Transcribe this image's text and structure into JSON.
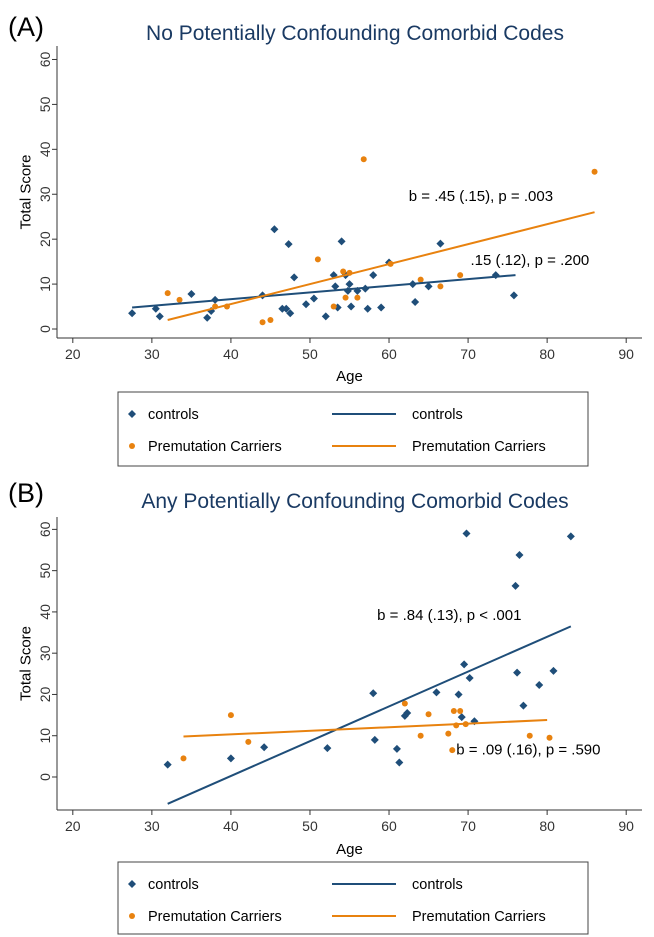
{
  "colors": {
    "controls": "#1f4e79",
    "carriers": "#e8820f",
    "title": "#1a3a63",
    "axis": "#333333"
  },
  "chart_data": [
    {
      "type": "scatter",
      "panel_label": "(A)",
      "title": "No Potentially Confounding Comorbid Codes",
      "xlabel": "Age",
      "ylabel": "Total Score",
      "xlim": [
        18,
        92
      ],
      "ylim": [
        -2,
        63
      ],
      "xticks": [
        20,
        30,
        40,
        50,
        60,
        70,
        80,
        90
      ],
      "yticks": [
        0,
        10,
        20,
        30,
        40,
        50,
        60
      ],
      "series": [
        {
          "name": "controls",
          "marker": "diamond",
          "color": "#1f4e79",
          "points": [
            [
              27.5,
              3.5
            ],
            [
              30.5,
              4.5
            ],
            [
              31,
              2.8
            ],
            [
              35,
              7.8
            ],
            [
              37,
              2.5
            ],
            [
              37.5,
              4
            ],
            [
              38,
              6.5
            ],
            [
              44,
              7.5
            ],
            [
              45.5,
              22.2
            ],
            [
              46.5,
              4.5
            ],
            [
              47,
              4.5
            ],
            [
              47.3,
              18.9
            ],
            [
              47.5,
              3.5
            ],
            [
              48,
              11.5
            ],
            [
              49.5,
              5.5
            ],
            [
              50.5,
              6.8
            ],
            [
              52,
              2.8
            ],
            [
              53,
              12
            ],
            [
              53.2,
              9.5
            ],
            [
              53.5,
              4.8
            ],
            [
              54,
              19.5
            ],
            [
              54.5,
              12
            ],
            [
              54.8,
              8.5
            ],
            [
              55,
              10
            ],
            [
              55.2,
              5
            ],
            [
              56,
              8.5
            ],
            [
              57,
              9
            ],
            [
              57.3,
              4.5
            ],
            [
              58,
              12
            ],
            [
              59,
              4.8
            ],
            [
              60,
              14.8
            ],
            [
              63,
              10
            ],
            [
              63.3,
              6
            ],
            [
              65,
              9.5
            ],
            [
              66.5,
              19
            ],
            [
              73.5,
              12
            ],
            [
              75.8,
              7.5
            ]
          ]
        },
        {
          "name": "Premutation Carriers",
          "marker": "circle",
          "color": "#e8820f",
          "points": [
            [
              32,
              8
            ],
            [
              33.5,
              6.5
            ],
            [
              38,
              5
            ],
            [
              39.5,
              5
            ],
            [
              44,
              1.5
            ],
            [
              45,
              2
            ],
            [
              51,
              15.5
            ],
            [
              53,
              5
            ],
            [
              54.2,
              12.8
            ],
            [
              54.5,
              7
            ],
            [
              55,
              12.5
            ],
            [
              56,
              7
            ],
            [
              56.8,
              37.8
            ],
            [
              60.2,
              14.5
            ],
            [
              64,
              11
            ],
            [
              66.5,
              9.5
            ],
            [
              69,
              12
            ],
            [
              86,
              35
            ]
          ]
        },
        {
          "name": "controls",
          "type": "line",
          "color": "#1f4e79",
          "x": [
            27.5,
            76
          ],
          "y": [
            4.8,
            12
          ]
        },
        {
          "name": "Premutation Carriers",
          "type": "line",
          "color": "#e8820f",
          "x": [
            32,
            86
          ],
          "y": [
            2,
            26
          ]
        }
      ],
      "annotations": [
        {
          "text": "b = .45 (.15), p = .003",
          "x": 62.5,
          "y": 28.5
        },
        {
          "text": ".15 (.12), p = .200",
          "x": 70.3,
          "y": 14.3
        }
      ],
      "legend": {
        "placement": "below",
        "entries": [
          {
            "label": "controls",
            "kind": "marker",
            "color": "#1f4e79",
            "marker": "diamond"
          },
          {
            "label": "controls",
            "kind": "line",
            "color": "#1f4e79"
          },
          {
            "label": "Premutation Carriers",
            "kind": "marker",
            "color": "#e8820f",
            "marker": "circle"
          },
          {
            "label": "Premutation Carriers",
            "kind": "line",
            "color": "#e8820f"
          }
        ]
      }
    },
    {
      "type": "scatter",
      "panel_label": "(B)",
      "title": "Any Potentially Confounding Comorbid Codes",
      "xlabel": "Age",
      "ylabel": "Total Score",
      "xlim": [
        18,
        92
      ],
      "ylim": [
        -8,
        63
      ],
      "xticks": [
        20,
        30,
        40,
        50,
        60,
        70,
        80,
        90
      ],
      "yticks": [
        0,
        10,
        20,
        30,
        40,
        50,
        60
      ],
      "series": [
        {
          "name": "controls",
          "marker": "diamond",
          "color": "#1f4e79",
          "points": [
            [
              32,
              3
            ],
            [
              40,
              4.5
            ],
            [
              44.2,
              7.2
            ],
            [
              52.2,
              7
            ],
            [
              58,
              20.3
            ],
            [
              58.2,
              9
            ],
            [
              61,
              6.8
            ],
            [
              61.3,
              3.5
            ],
            [
              62,
              14.8
            ],
            [
              62.3,
              15.5
            ],
            [
              66,
              20.5
            ],
            [
              68.8,
              20
            ],
            [
              69.2,
              14.5
            ],
            [
              69.5,
              27.3
            ],
            [
              69.8,
              59
            ],
            [
              70.2,
              24
            ],
            [
              70.8,
              13.5
            ],
            [
              76,
              46.3
            ],
            [
              76.2,
              25.3
            ],
            [
              76.5,
              53.8
            ],
            [
              77,
              17.3
            ],
            [
              79,
              22.3
            ],
            [
              80.8,
              25.7
            ],
            [
              83,
              58.3
            ]
          ]
        },
        {
          "name": "Premutation Carriers",
          "marker": "circle",
          "color": "#e8820f",
          "points": [
            [
              34,
              4.5
            ],
            [
              40,
              15
            ],
            [
              42.2,
              8.5
            ],
            [
              62,
              17.8
            ],
            [
              64,
              10
            ],
            [
              65,
              15.2
            ],
            [
              67.5,
              10.5
            ],
            [
              68,
              6.5
            ],
            [
              68.2,
              16
            ],
            [
              68.5,
              12.5
            ],
            [
              69,
              16
            ],
            [
              69.7,
              12.8
            ],
            [
              77.8,
              10
            ],
            [
              80.3,
              9.5
            ]
          ]
        },
        {
          "name": "controls",
          "type": "line",
          "color": "#1f4e79",
          "x": [
            32,
            83
          ],
          "y": [
            -6.5,
            36.5
          ]
        },
        {
          "name": "Premutation Carriers",
          "type": "line",
          "color": "#e8820f",
          "x": [
            34,
            80
          ],
          "y": [
            9.8,
            13.8
          ]
        }
      ],
      "annotations": [
        {
          "text": "b = .84 (.13), p < .001",
          "x": 58.5,
          "y": 38
        },
        {
          "text": "b = .09 (.16), p = .590",
          "x": 68.5,
          "y": 5.5
        }
      ],
      "legend": {
        "placement": "below",
        "entries": [
          {
            "label": "controls",
            "kind": "marker",
            "color": "#1f4e79",
            "marker": "diamond"
          },
          {
            "label": "controls",
            "kind": "line",
            "color": "#1f4e79"
          },
          {
            "label": "Premutation Carriers",
            "kind": "marker",
            "color": "#e8820f",
            "marker": "circle"
          },
          {
            "label": "Premutation Carriers",
            "kind": "line",
            "color": "#e8820f"
          }
        ]
      }
    }
  ]
}
